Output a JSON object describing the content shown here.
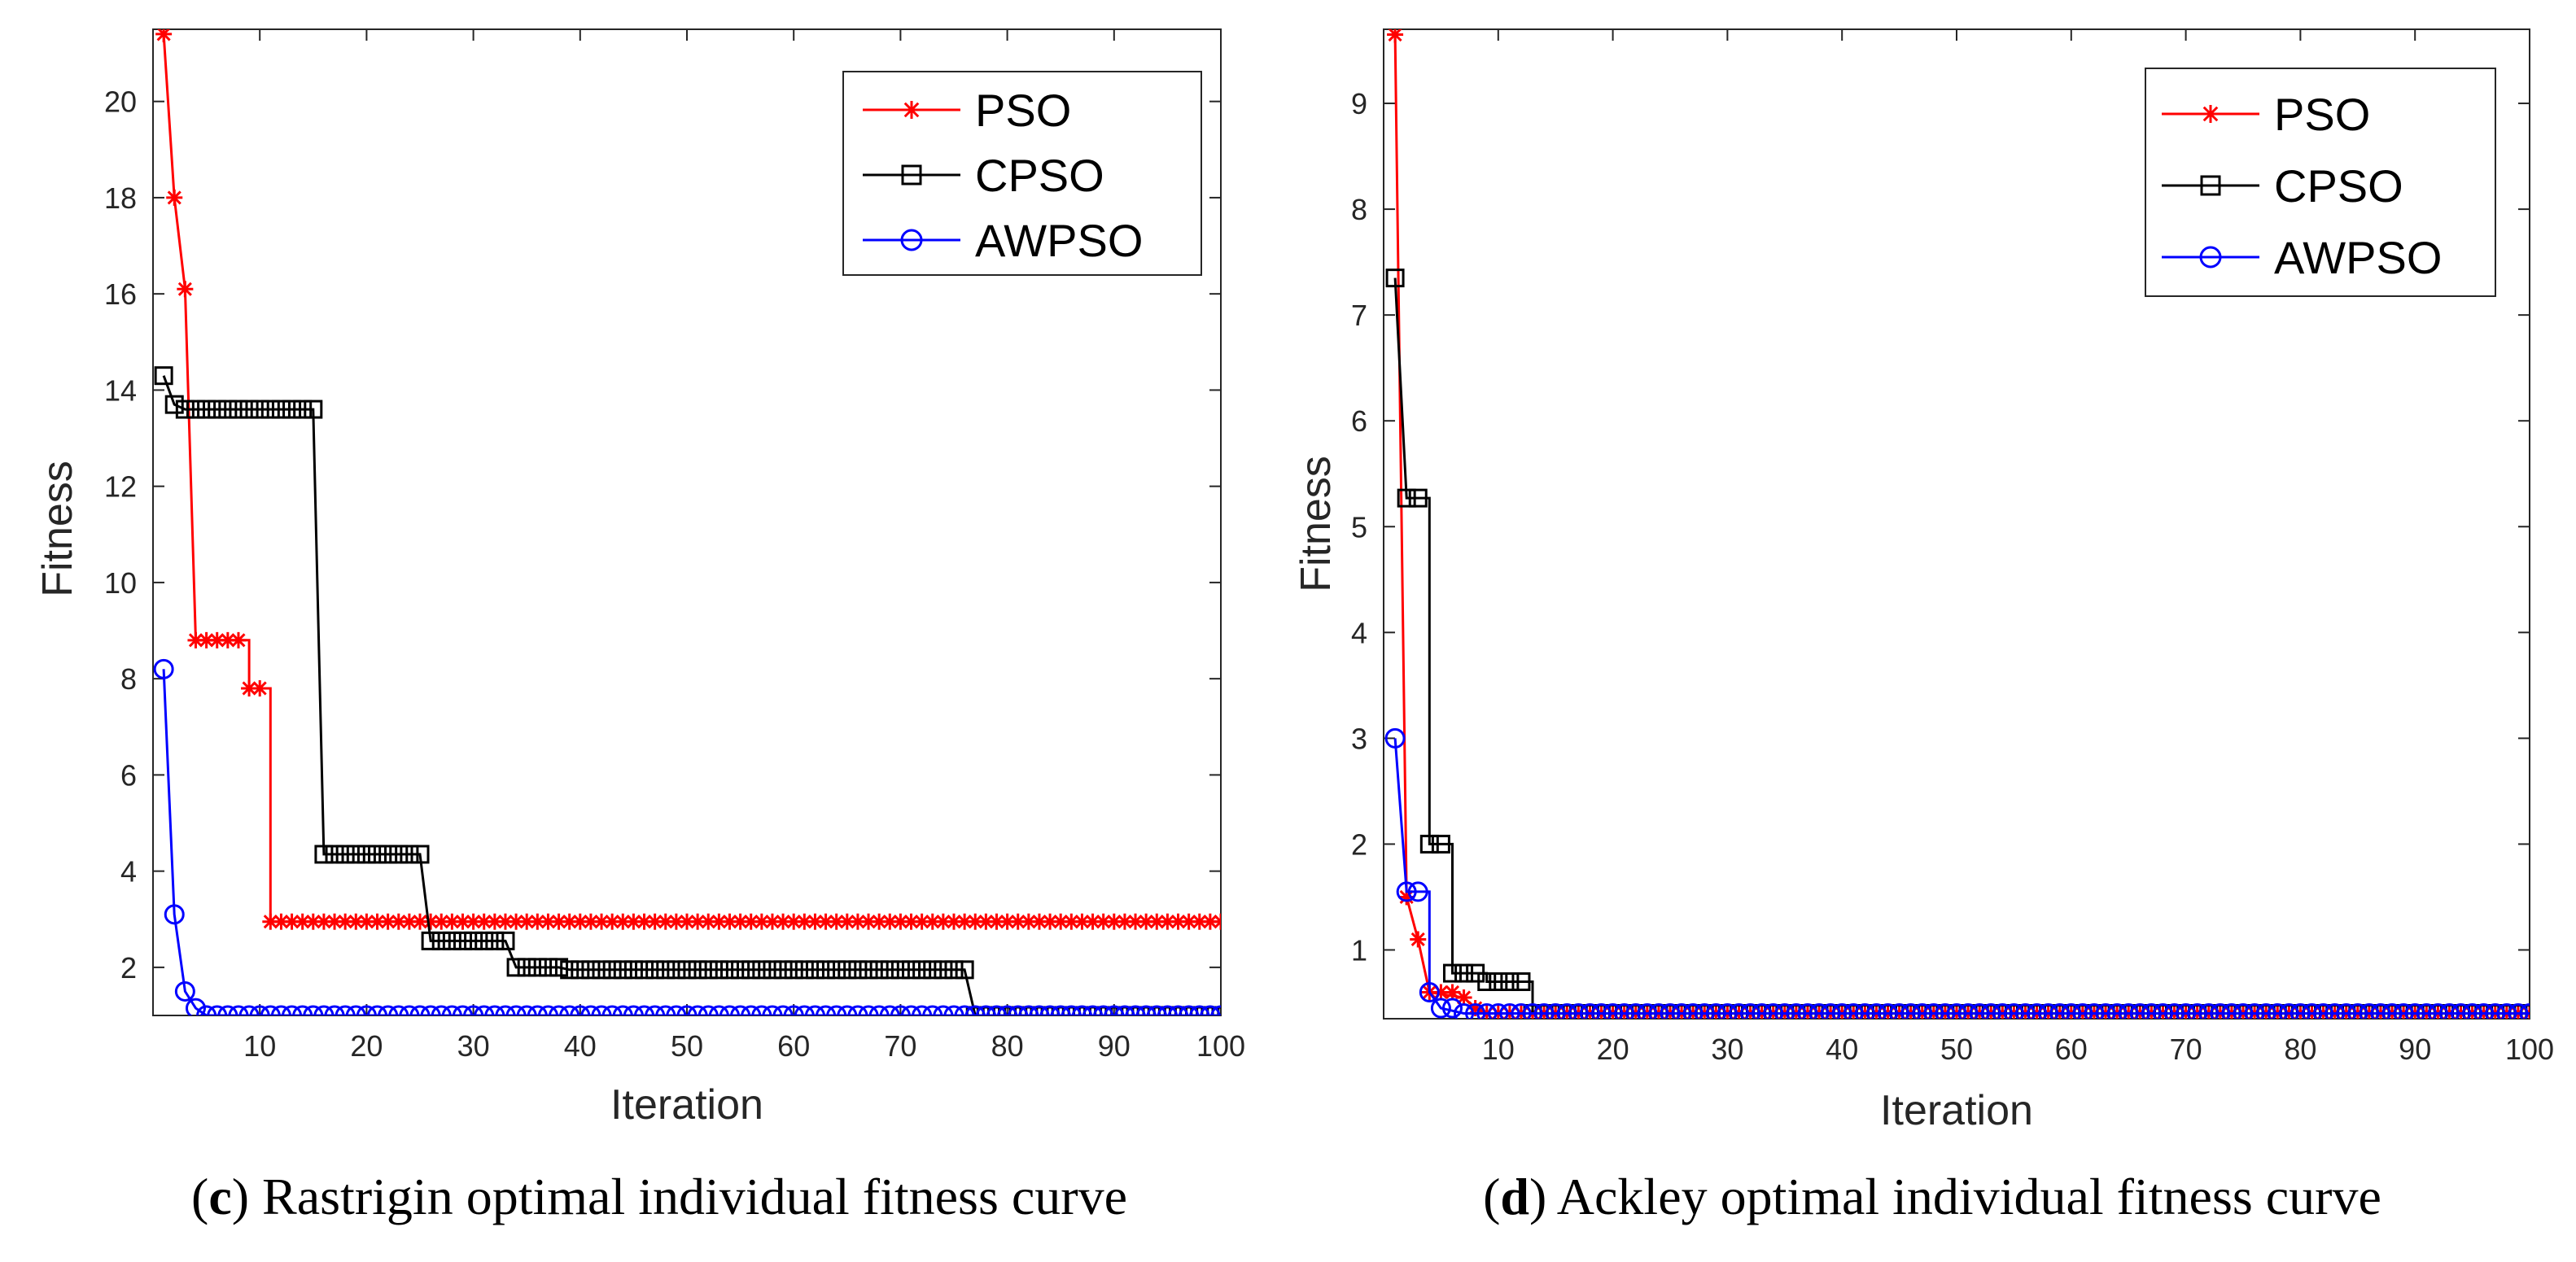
{
  "colors": {
    "pso": "#ff0000",
    "cpso": "#000000",
    "awpso": "#0000ff",
    "axis": "#262626"
  },
  "chart_data": [
    {
      "type": "line",
      "caption_letter": "c",
      "caption_text": ") Rastrigin optimal individual fitness curve",
      "caption_open": "(",
      "xlabel": "Iteration",
      "ylabel": "Fitness",
      "xlim": [
        0,
        100
      ],
      "ylim": [
        1,
        21.5
      ],
      "xticks": [
        10,
        20,
        30,
        40,
        50,
        60,
        70,
        80,
        90,
        100
      ],
      "yticks": [
        2,
        4,
        6,
        8,
        10,
        12,
        14,
        16,
        18,
        20
      ],
      "legend_position": "top-right",
      "series": [
        {
          "name": "PSO",
          "marker": "star",
          "color_key": "pso",
          "steps": [
            [
              1,
              21.4
            ],
            [
              2,
              18.0
            ],
            [
              3,
              16.1
            ],
            [
              4,
              8.8
            ],
            [
              9,
              8.8
            ],
            [
              9,
              7.8
            ],
            [
              11,
              7.8
            ],
            [
              11,
              2.95
            ],
            [
              100,
              2.95
            ]
          ]
        },
        {
          "name": "CPSO",
          "marker": "square",
          "color_key": "cpso",
          "steps": [
            [
              1,
              14.3
            ],
            [
              2,
              13.7
            ],
            [
              3,
              13.6
            ],
            [
              15,
              13.6
            ],
            [
              16,
              4.35
            ],
            [
              25,
              4.35
            ],
            [
              26,
              2.55
            ],
            [
              33,
              2.55
            ],
            [
              34,
              2.0
            ],
            [
              38,
              2.0
            ],
            [
              39,
              1.95
            ],
            [
              76,
              1.95
            ],
            [
              77,
              1.0
            ],
            [
              100,
              1.0
            ]
          ]
        },
        {
          "name": "AWPSO",
          "marker": "circle",
          "color_key": "awpso",
          "steps": [
            [
              1,
              8.2
            ],
            [
              2,
              3.1
            ],
            [
              3,
              1.5
            ],
            [
              4,
              1.15
            ],
            [
              5,
              1.0
            ],
            [
              100,
              1.0
            ]
          ]
        }
      ]
    },
    {
      "type": "line",
      "caption_letter": "d",
      "caption_text": ") Ackley optimal individual fitness curve",
      "caption_open": "(",
      "xlabel": "Iteration",
      "ylabel": "Fitness",
      "xlim": [
        0,
        100
      ],
      "ylim": [
        0.35,
        9.7
      ],
      "xticks": [
        10,
        20,
        30,
        40,
        50,
        60,
        70,
        80,
        90,
        100
      ],
      "yticks": [
        1,
        2,
        3,
        4,
        5,
        6,
        7,
        8,
        9
      ],
      "legend_position": "top-right",
      "series": [
        {
          "name": "PSO",
          "marker": "star",
          "color_key": "pso",
          "steps": [
            [
              1,
              9.65
            ],
            [
              2,
              1.5
            ],
            [
              3,
              1.1
            ],
            [
              4,
              0.6
            ],
            [
              7,
              0.55
            ],
            [
              8,
              0.45
            ],
            [
              9,
              0.4
            ],
            [
              100,
              0.4
            ]
          ]
        },
        {
          "name": "CPSO",
          "marker": "square",
          "color_key": "cpso",
          "steps": [
            [
              1,
              7.35
            ],
            [
              2,
              5.27
            ],
            [
              4,
              5.27
            ],
            [
              4,
              2.0
            ],
            [
              6,
              2.0
            ],
            [
              6,
              0.78
            ],
            [
              9,
              0.78
            ],
            [
              9,
              0.7
            ],
            [
              13,
              0.7
            ],
            [
              13,
              0.4
            ],
            [
              100,
              0.4
            ]
          ]
        },
        {
          "name": "AWPSO",
          "marker": "circle",
          "color_key": "awpso",
          "steps": [
            [
              1,
              3.0
            ],
            [
              2,
              1.55
            ],
            [
              4,
              1.55
            ],
            [
              4,
              0.6
            ],
            [
              5,
              0.45
            ],
            [
              7,
              0.4
            ],
            [
              100,
              0.4
            ]
          ]
        }
      ]
    }
  ]
}
